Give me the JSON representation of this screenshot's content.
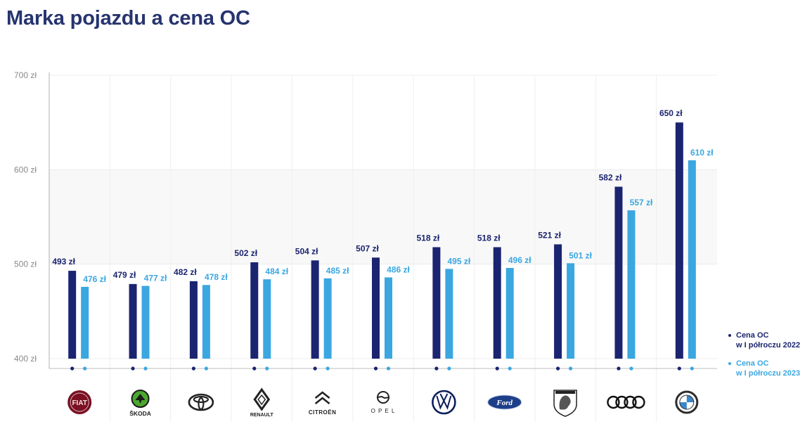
{
  "title": "Marka pojazdu a cena OC",
  "colors": {
    "series2022": "#1b2470",
    "series2023": "#3aa7e1",
    "title": "#26346f",
    "axis": "#8a8a8a",
    "grid": "#ececec"
  },
  "legend": [
    {
      "label": "Cena OC\nw I półroczu 2022"
    },
    {
      "label": "Cena OC\nw I półroczu 2023"
    }
  ],
  "chart_data": {
    "type": "bar",
    "categories": [
      "Fiat",
      "Škoda",
      "Toyota",
      "Renault",
      "Citroën",
      "Opel",
      "Volkswagen",
      "Ford",
      "Peugeot",
      "Audi",
      "BMW"
    ],
    "series": [
      {
        "name": "Cena OC w I półroczu 2022",
        "values": [
          493,
          479,
          482,
          502,
          504,
          507,
          518,
          518,
          521,
          582,
          650
        ],
        "labels": [
          "493 zł",
          "479 zł",
          "482 zł",
          "502 zł",
          "504 zł",
          "507 zł",
          "518 zł",
          "518 zł",
          "521 zł",
          "582 zł",
          "650 zł"
        ]
      },
      {
        "name": "Cena OC w I półroczu 2023",
        "values": [
          476,
          477,
          478,
          484,
          485,
          486,
          495,
          496,
          501,
          557,
          610
        ],
        "labels": [
          "476 zł",
          "477 zł",
          "478 zł",
          "484 zł",
          "485 zł",
          "486 zł",
          "495 zł",
          "496 zł",
          "501 zł",
          "557 zł",
          "610 zł"
        ]
      }
    ],
    "yticks": [
      "400 zł",
      "500 zł",
      "600 zł",
      "700 zł"
    ],
    "ytick_values": [
      400,
      500,
      600,
      700
    ],
    "ylim": [
      400,
      700
    ],
    "grid": true,
    "legend_position": "right",
    "logos": [
      {
        "icon": "fiat-logo-icon",
        "text": "FIAT"
      },
      {
        "icon": "skoda-logo-icon",
        "text": "ŠKODA"
      },
      {
        "icon": "toyota-logo-icon",
        "text": ""
      },
      {
        "icon": "renault-logo-icon",
        "text": "RENAULT"
      },
      {
        "icon": "citroen-logo-icon",
        "text": "CITROËN"
      },
      {
        "icon": "opel-logo-icon",
        "text": "OPEL"
      },
      {
        "icon": "volkswagen-logo-icon",
        "text": ""
      },
      {
        "icon": "ford-logo-icon",
        "text": "Ford"
      },
      {
        "icon": "peugeot-logo-icon",
        "text": ""
      },
      {
        "icon": "audi-logo-icon",
        "text": ""
      },
      {
        "icon": "bmw-logo-icon",
        "text": ""
      }
    ]
  }
}
